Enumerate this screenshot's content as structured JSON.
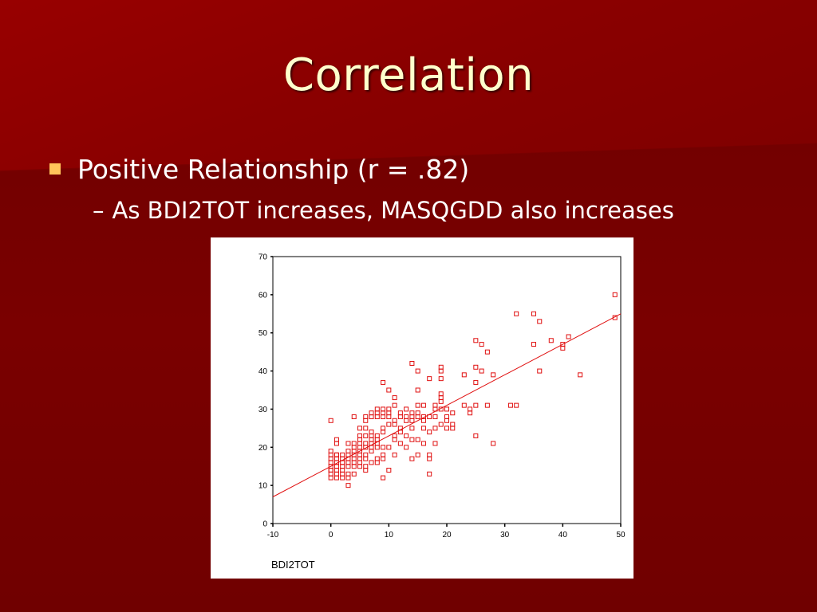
{
  "slide": {
    "title": "Correlation",
    "bullet": "Positive Relationship (r = .82)",
    "sub_dash": "–",
    "sub_bullet": "As BDI2TOT increases, MASQGDD also increases"
  },
  "colors": {
    "background": "#7a0000",
    "title": "#ffffcc",
    "bullet_marker": "#ffc35a",
    "series": "#e01010"
  },
  "chart_data": {
    "type": "scatter",
    "title": "",
    "xlabel": "BDI2TOT",
    "ylabel": "",
    "xlim": [
      -10,
      50
    ],
    "ylim": [
      0,
      70
    ],
    "xticks": [
      -10,
      0,
      10,
      20,
      30,
      40,
      50
    ],
    "yticks": [
      0,
      10,
      20,
      30,
      40,
      50,
      60,
      70
    ],
    "grid": false,
    "legend": "none",
    "marker": "open-square",
    "fit_line": {
      "x": [
        -10,
        50
      ],
      "y": [
        7,
        55
      ]
    },
    "x": [
      0,
      0,
      0,
      0,
      0,
      0,
      0,
      0,
      0,
      0,
      1,
      1,
      1,
      1,
      1,
      1,
      1,
      1,
      1,
      1,
      2,
      2,
      2,
      2,
      2,
      2,
      2,
      3,
      3,
      3,
      3,
      3,
      3,
      3,
      3,
      3,
      4,
      4,
      4,
      4,
      4,
      4,
      4,
      4,
      4,
      5,
      5,
      5,
      5,
      5,
      5,
      5,
      5,
      5,
      5,
      6,
      6,
      6,
      6,
      6,
      6,
      6,
      6,
      6,
      6,
      7,
      7,
      7,
      7,
      7,
      7,
      7,
      7,
      7,
      8,
      8,
      8,
      8,
      8,
      8,
      8,
      8,
      8,
      9,
      9,
      9,
      9,
      9,
      9,
      9,
      9,
      9,
      9,
      10,
      10,
      10,
      10,
      10,
      10,
      10,
      11,
      11,
      11,
      11,
      11,
      11,
      11,
      12,
      12,
      12,
      12,
      12,
      13,
      13,
      13,
      13,
      13,
      14,
      14,
      14,
      14,
      14,
      14,
      14,
      15,
      15,
      15,
      15,
      15,
      15,
      15,
      16,
      16,
      16,
      16,
      16,
      17,
      17,
      17,
      17,
      17,
      17,
      18,
      18,
      18,
      18,
      18,
      19,
      19,
      19,
      19,
      19,
      19,
      19,
      19,
      20,
      20,
      20,
      20,
      21,
      21,
      21,
      23,
      23,
      24,
      24,
      25,
      25,
      25,
      25,
      25,
      26,
      26,
      27,
      27,
      28,
      28,
      31,
      32,
      32,
      35,
      35,
      36,
      36,
      38,
      40,
      40,
      41,
      43,
      49,
      49
    ],
    "y": [
      27,
      19,
      18,
      17,
      16,
      15,
      14,
      13,
      12,
      14,
      22,
      21,
      18,
      17,
      16,
      15,
      14,
      13,
      12,
      18,
      18,
      17,
      16,
      15,
      14,
      13,
      12,
      21,
      19,
      18,
      17,
      16,
      15,
      13,
      12,
      10,
      28,
      21,
      20,
      19,
      18,
      17,
      16,
      15,
      13,
      25,
      23,
      22,
      21,
      20,
      19,
      18,
      17,
      16,
      15,
      28,
      27,
      25,
      23,
      21,
      20,
      18,
      17,
      15,
      14,
      29,
      28,
      24,
      23,
      22,
      21,
      20,
      19,
      16,
      30,
      29,
      28,
      23,
      22,
      21,
      20,
      17,
      16,
      37,
      30,
      29,
      28,
      25,
      24,
      20,
      18,
      17,
      12,
      35,
      30,
      29,
      28,
      26,
      20,
      14,
      33,
      31,
      27,
      26,
      23,
      22,
      18,
      29,
      28,
      25,
      24,
      21,
      30,
      28,
      27,
      23,
      20,
      42,
      29,
      28,
      27,
      25,
      22,
      17,
      35,
      31,
      29,
      28,
      22,
      40,
      18,
      31,
      28,
      27,
      25,
      21,
      38,
      28,
      24,
      18,
      17,
      13,
      31,
      30,
      28,
      25,
      21,
      41,
      40,
      38,
      34,
      33,
      32,
      30,
      26,
      30,
      28,
      27,
      25,
      29,
      26,
      25,
      39,
      31,
      30,
      29,
      48,
      41,
      37,
      31,
      23,
      47,
      40,
      45,
      31,
      39,
      21,
      31,
      55,
      31,
      55,
      47,
      53,
      40,
      48,
      47,
      46,
      49,
      39,
      60,
      54
    ]
  }
}
